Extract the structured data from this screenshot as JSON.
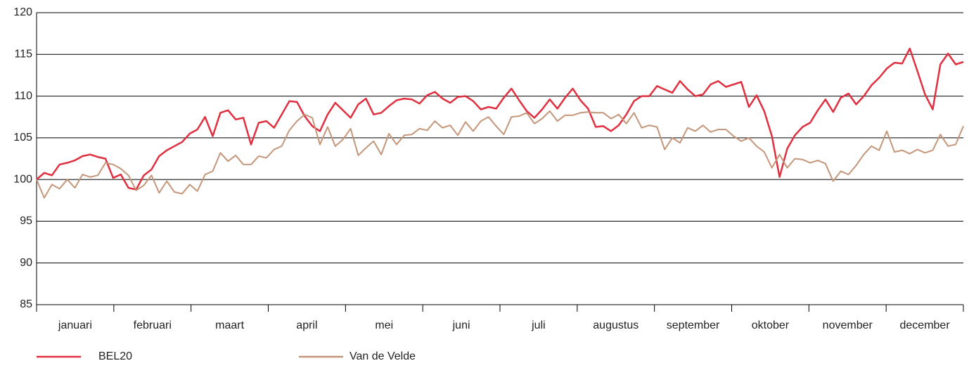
{
  "chart_data": {
    "type": "line",
    "x_labels": [
      "januari",
      "februari",
      "maart",
      "april",
      "mei",
      "juni",
      "juli",
      "augustus",
      "september",
      "oktober",
      "november",
      "december"
    ],
    "ylim": [
      85,
      120
    ],
    "yticks": [
      85,
      90,
      95,
      100,
      105,
      110,
      115,
      120
    ],
    "grid": true,
    "series": [
      {
        "name": "BEL20",
        "color": "#e03040",
        "values": [
          100,
          100.8,
          100.5,
          101.8,
          102,
          102.3,
          102.8,
          103,
          102.7,
          102.5,
          100.2,
          100.6,
          99,
          98.8,
          100.5,
          101.2,
          102.8,
          103.5,
          104,
          104.5,
          105.5,
          106,
          107.5,
          105.2,
          108,
          108.3,
          107.2,
          107.4,
          104.2,
          106.8,
          107,
          106.2,
          107.8,
          109.4,
          109.3,
          107.6,
          106.4,
          105.8,
          107.8,
          109.2,
          108.3,
          107.4,
          109,
          109.7,
          107.8,
          108,
          108.8,
          109.5,
          109.7,
          109.6,
          109.1,
          110.1,
          110.5,
          109.7,
          109.2,
          109.9,
          110,
          109.4,
          108.4,
          108.7,
          108.5,
          109.8,
          110.9,
          109.5,
          108.2,
          107.4,
          108.4,
          109.6,
          108.5,
          109.8,
          110.9,
          109.5,
          108.5,
          106.3,
          106.4,
          105.8,
          106.5,
          107.8,
          109.4,
          110,
          110,
          111.2,
          110.8,
          110.4,
          111.8,
          110.8,
          110,
          110.2,
          111.4,
          111.8,
          111.1,
          111.4,
          111.7,
          108.7,
          110.1,
          108.2,
          105.2,
          100.3,
          103.7,
          105.3,
          106.3,
          106.8,
          108.3,
          109.6,
          108.1,
          109.8,
          110.3,
          109,
          110,
          111.3,
          112.2,
          113.3,
          114,
          113.9,
          115.7,
          113,
          110.2,
          108.4,
          113.8,
          115.1,
          113.8,
          114.1
        ]
      },
      {
        "name": "Van de Velde",
        "color": "#c4967a",
        "values": [
          100,
          97.8,
          99.4,
          98.9,
          100,
          99,
          100.6,
          100.3,
          100.5,
          102,
          101.8,
          101.3,
          100.5,
          98.7,
          99.3,
          100.5,
          98.4,
          99.8,
          98.5,
          98.3,
          99.4,
          98.6,
          100.6,
          101,
          103.2,
          102.2,
          102.9,
          101.8,
          101.8,
          102.8,
          102.6,
          103.6,
          104,
          105.9,
          107,
          107.8,
          107.4,
          104.2,
          106.3,
          104,
          104.8,
          106.1,
          102.9,
          103.8,
          104.6,
          103,
          105.5,
          104.2,
          105.3,
          105.4,
          106.1,
          105.9,
          107,
          106.2,
          106.5,
          105.3,
          106.9,
          105.8,
          107,
          107.5,
          106.4,
          105.4,
          107.5,
          107.6,
          108,
          106.7,
          107.3,
          108.2,
          107,
          107.7,
          107.7,
          108,
          108.1,
          108,
          108,
          107.3,
          107.8,
          106.7,
          108,
          106.2,
          106.5,
          106.3,
          103.6,
          105,
          104.4,
          106.2,
          105.8,
          106.5,
          105.7,
          106,
          106,
          105.2,
          104.6,
          105,
          104,
          103.3,
          101.4,
          103,
          101.4,
          102.5,
          102.4,
          102,
          102.3,
          101.9,
          99.8,
          101,
          100.6,
          101.7,
          103,
          104,
          103.5,
          105.8,
          103.3,
          103.5,
          103.1,
          103.6,
          103.2,
          103.5,
          105.4,
          104,
          104.2,
          106.4
        ]
      }
    ]
  }
}
